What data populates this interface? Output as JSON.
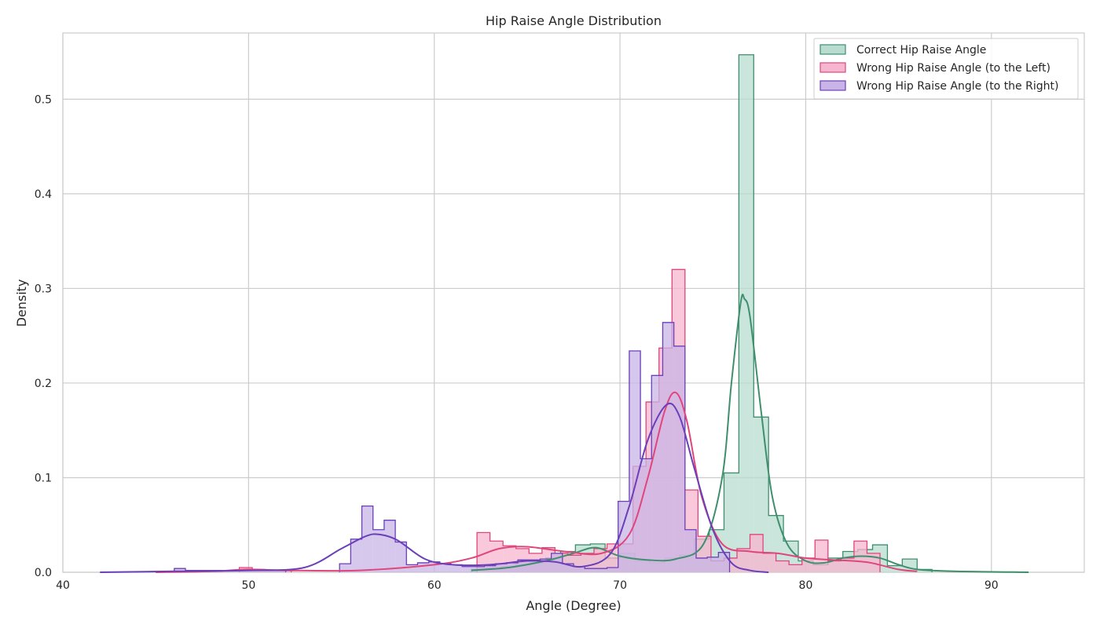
{
  "chart_data": {
    "type": "histogram",
    "title": "Hip Raise Angle Distribution",
    "xlabel": "Angle (Degree)",
    "ylabel": "Density",
    "xlim": [
      40,
      95
    ],
    "ylim": [
      0,
      0.57
    ],
    "xticks": [
      40,
      50,
      60,
      70,
      80,
      90
    ],
    "yticks": [
      0.0,
      0.1,
      0.2,
      0.3,
      0.4,
      0.5
    ],
    "grid": true,
    "legend_position": "top-right",
    "series": [
      {
        "name": "Correct Hip Raise Angle",
        "color": "#3f8f6e",
        "fill": "#b8dccf",
        "edges": [
          62,
          62.8,
          63.6,
          64.4,
          65.2,
          66,
          66.8,
          67.6,
          68.4,
          69.2,
          70,
          70.8,
          71.6,
          72.4,
          73.2,
          74,
          74.8,
          75.6,
          76.4,
          77.2,
          78,
          78.8,
          79.6,
          80.4,
          81.2,
          82,
          82.8,
          83.6,
          84.4,
          85.2,
          86,
          86.8
        ],
        "densities": [
          0.003,
          0.004,
          0.006,
          0.008,
          0.01,
          0.015,
          0.022,
          0.029,
          0.03,
          0.015,
          0.02,
          0.012,
          0.01,
          0.015,
          0.018,
          0.035,
          0.045,
          0.105,
          0.547,
          0.164,
          0.06,
          0.033,
          0.012,
          0.008,
          0.015,
          0.022,
          0.024,
          0.029,
          0.007,
          0.014,
          0.003
        ],
        "kde": [
          [
            62,
            0.002
          ],
          [
            64,
            0.005
          ],
          [
            66,
            0.012
          ],
          [
            67.5,
            0.02
          ],
          [
            68.7,
            0.026
          ],
          [
            70,
            0.017
          ],
          [
            71.5,
            0.013
          ],
          [
            73,
            0.014
          ],
          [
            74.5,
            0.03
          ],
          [
            75.5,
            0.1
          ],
          [
            76,
            0.2
          ],
          [
            76.5,
            0.285
          ],
          [
            76.7,
            0.289
          ],
          [
            77,
            0.27
          ],
          [
            77.6,
            0.17
          ],
          [
            78.2,
            0.08
          ],
          [
            79,
            0.03
          ],
          [
            80,
            0.012
          ],
          [
            81,
            0.01
          ],
          [
            82,
            0.015
          ],
          [
            83,
            0.017
          ],
          [
            84,
            0.015
          ],
          [
            85,
            0.008
          ],
          [
            86,
            0.003
          ],
          [
            88,
            0.001
          ],
          [
            92,
            0.0
          ]
        ]
      },
      {
        "name": "Wrong Hip Raise Angle (to the Left)",
        "color": "#e0457b",
        "fill": "#f7b6cf",
        "edges": [
          49.5,
          50.2,
          50.9,
          51.6,
          52.3,
          53,
          62.3,
          63,
          63.7,
          64.4,
          65.1,
          65.8,
          66.5,
          67.2,
          67.9,
          68.6,
          69.3,
          70,
          70.7,
          71.4,
          72.1,
          72.8,
          73.5,
          74.2,
          74.9,
          75.6,
          76.3,
          77,
          77.7,
          78.4,
          79.1,
          79.8,
          80.5,
          81.2,
          81.9,
          82.6,
          83.3,
          84
        ],
        "densities": [
          0.005,
          0.003,
          0.002,
          0.002,
          0.0,
          0.0,
          0.042,
          0.033,
          0.028,
          0.025,
          0.02,
          0.026,
          0.02,
          0.018,
          0.02,
          0.025,
          0.03,
          0.03,
          0.112,
          0.18,
          0.237,
          0.32,
          0.087,
          0.038,
          0.012,
          0.015,
          0.025,
          0.04,
          0.02,
          0.012,
          0.008,
          0.015,
          0.034,
          0.012,
          0.015,
          0.033,
          0.02
        ],
        "kde": [
          [
            45,
            0.0
          ],
          [
            48,
            0.001
          ],
          [
            50,
            0.003
          ],
          [
            52,
            0.002
          ],
          [
            56,
            0.002
          ],
          [
            60,
            0.008
          ],
          [
            62,
            0.015
          ],
          [
            63.5,
            0.025
          ],
          [
            65,
            0.027
          ],
          [
            67,
            0.022
          ],
          [
            69,
            0.02
          ],
          [
            70.5,
            0.04
          ],
          [
            71.5,
            0.1
          ],
          [
            72.4,
            0.17
          ],
          [
            73,
            0.19
          ],
          [
            73.6,
            0.16
          ],
          [
            74.4,
            0.08
          ],
          [
            75.5,
            0.03
          ],
          [
            77,
            0.022
          ],
          [
            78.5,
            0.02
          ],
          [
            80,
            0.015
          ],
          [
            81.5,
            0.013
          ],
          [
            82.5,
            0.012
          ],
          [
            83.5,
            0.01
          ],
          [
            85,
            0.003
          ],
          [
            86,
            0.001
          ]
        ]
      },
      {
        "name": "Wrong Hip Raise Angle (to the Right)",
        "color": "#6a3fb8",
        "fill": "#c8b4e6",
        "edges": [
          46,
          46.6,
          47.2,
          47.8,
          48.4,
          49,
          49.6,
          50.2,
          50.8,
          51.4,
          52,
          54.9,
          55.5,
          56.1,
          56.7,
          57.3,
          57.9,
          58.5,
          59.1,
          59.7,
          60.3,
          60.9,
          61.5,
          62.1,
          62.7,
          63.3,
          63.9,
          64.5,
          65.1,
          65.7,
          66.3,
          66.9,
          67.5,
          68.1,
          68.7,
          69.3,
          69.9,
          70.5,
          71.1,
          71.7,
          72.3,
          72.9,
          73.5,
          74.1,
          74.7,
          75.3,
          75.9
        ],
        "densities": [
          0.004,
          0.002,
          0.002,
          0.002,
          0.002,
          0.002,
          0.002,
          0.002,
          0.002,
          0.002,
          0.0,
          0.009,
          0.035,
          0.07,
          0.045,
          0.055,
          0.032,
          0.008,
          0.01,
          0.011,
          0.009,
          0.008,
          0.006,
          0.006,
          0.007,
          0.009,
          0.01,
          0.013,
          0.013,
          0.014,
          0.02,
          0.009,
          0.006,
          0.004,
          0.004,
          0.005,
          0.075,
          0.234,
          0.12,
          0.208,
          0.264,
          0.239,
          0.045,
          0.015,
          0.016,
          0.021
        ],
        "kde": [
          [
            42,
            0.0
          ],
          [
            46,
            0.001
          ],
          [
            50,
            0.002
          ],
          [
            53,
            0.005
          ],
          [
            55,
            0.025
          ],
          [
            56.3,
            0.038
          ],
          [
            57,
            0.04
          ],
          [
            58,
            0.034
          ],
          [
            59.5,
            0.014
          ],
          [
            61,
            0.008
          ],
          [
            63,
            0.008
          ],
          [
            65,
            0.012
          ],
          [
            66.5,
            0.011
          ],
          [
            68,
            0.006
          ],
          [
            69.5,
            0.02
          ],
          [
            70.5,
            0.07
          ],
          [
            71.5,
            0.14
          ],
          [
            72.5,
            0.177
          ],
          [
            73.2,
            0.165
          ],
          [
            74,
            0.11
          ],
          [
            75,
            0.045
          ],
          [
            76,
            0.01
          ],
          [
            77,
            0.002
          ],
          [
            78,
            0.0
          ]
        ]
      }
    ]
  }
}
